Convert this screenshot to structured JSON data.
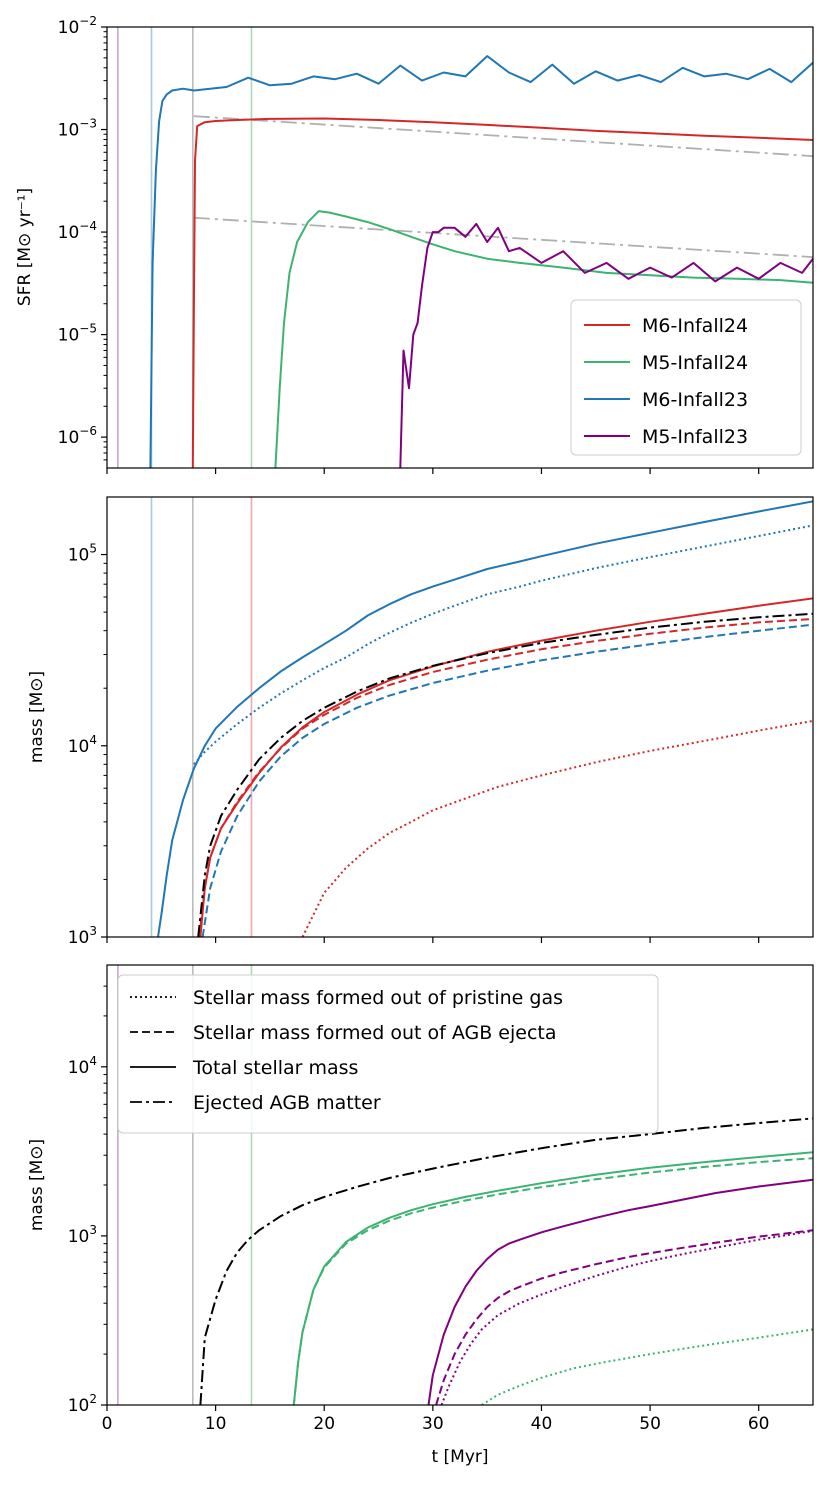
{
  "chart_data": [
    {
      "type": "line",
      "panel": "top",
      "ylabel": "SFR [M⊙ yr⁻¹]",
      "yscale": "log",
      "ylim": [
        5e-07,
        0.01
      ],
      "xlim": [
        0,
        65
      ],
      "yticks": [
        {
          "value": 1e-06,
          "base": "10",
          "exp": "−6"
        },
        {
          "value": 1e-05,
          "base": "10",
          "exp": "−5"
        },
        {
          "value": 0.0001,
          "base": "10",
          "exp": "−4"
        },
        {
          "value": 0.001,
          "base": "10",
          "exp": "−3"
        },
        {
          "value": 0.01,
          "base": "10",
          "exp": "−2"
        }
      ],
      "vlines": [
        {
          "x": 1.0,
          "color": "#c8a8d2"
        },
        {
          "x": 4.1,
          "color": "#a9c9e0"
        },
        {
          "x": 7.9,
          "color": "#bcbcbc"
        },
        {
          "x": 13.3,
          "color": "#a9dcb5"
        }
      ],
      "reference_lines": [
        {
          "name": "high-mass-fit",
          "color": "#b0b0b0",
          "x": [
            8,
            65
          ],
          "y": [
            0.00135,
            0.00055
          ]
        },
        {
          "name": "low-mass-fit",
          "color": "#b0b0b0",
          "x": [
            8,
            65
          ],
          "y": [
            0.000138,
            5.7e-05
          ]
        }
      ],
      "series": [
        {
          "name": "M6-Infall24",
          "color": "#d62728",
          "x": [
            7.9,
            8.0,
            8.1,
            8.3,
            9,
            10,
            12,
            15,
            20,
            25,
            30,
            35,
            40,
            45,
            50,
            55,
            60,
            65
          ],
          "y": [
            5e-07,
            2e-05,
            0.0005,
            0.00108,
            0.00118,
            0.00121,
            0.00124,
            0.00127,
            0.00128,
            0.00124,
            0.00118,
            0.00111,
            0.00104,
            0.00097,
            0.00092,
            0.00087,
            0.00083,
            0.00079
          ]
        },
        {
          "name": "M5-Infall24",
          "color": "#3cb371",
          "x": [
            15.5,
            15.9,
            16.3,
            16.8,
            17.5,
            18.5,
            19.5,
            20.5,
            22,
            24,
            26,
            28,
            30,
            32,
            35,
            38,
            42,
            46,
            50,
            54,
            58,
            62,
            65
          ],
          "y": [
            5e-07,
            3e-06,
            1.3e-05,
            4e-05,
            8e-05,
            0.000125,
            0.00016,
            0.000155,
            0.000142,
            0.000125,
            0.000107,
            9e-05,
            7.6e-05,
            6.5e-05,
            5.5e-05,
            5e-05,
            4.5e-05,
            4e-05,
            3.8e-05,
            3.6e-05,
            3.5e-05,
            3.4e-05,
            3.2e-05
          ]
        },
        {
          "name": "M6-Infall23",
          "color": "#1f77b4",
          "x": [
            4.0,
            4.2,
            4.5,
            4.8,
            5.1,
            5.5,
            6.0,
            7.0,
            8.0,
            9.5,
            11,
            13,
            15,
            17,
            19,
            21,
            23,
            25,
            27,
            29,
            31,
            33,
            35,
            37,
            39,
            41,
            43,
            45,
            47,
            49,
            51,
            53,
            55,
            57,
            59,
            61,
            63,
            65
          ],
          "y": [
            5e-07,
            5e-05,
            0.0004,
            0.0012,
            0.0019,
            0.0022,
            0.0024,
            0.0025,
            0.0024,
            0.0025,
            0.0026,
            0.0032,
            0.0027,
            0.0028,
            0.0033,
            0.0031,
            0.0035,
            0.0028,
            0.0042,
            0.003,
            0.0036,
            0.0033,
            0.0052,
            0.0036,
            0.0029,
            0.0043,
            0.0028,
            0.0037,
            0.003,
            0.0034,
            0.0029,
            0.004,
            0.0033,
            0.0035,
            0.0031,
            0.0039,
            0.0029,
            0.0045
          ]
        },
        {
          "name": "M5-Infall23",
          "color": "#800080",
          "x": [
            27.0,
            27.3,
            27.8,
            28.2,
            28.6,
            29.0,
            29.5,
            30.0,
            30.5,
            31,
            32,
            33,
            34,
            35,
            36,
            37,
            38,
            40,
            42,
            44,
            46,
            48,
            50,
            52,
            54,
            56,
            58,
            60,
            62,
            64,
            65
          ],
          "y": [
            5e-07,
            7e-06,
            3e-06,
            1e-05,
            1.3e-05,
            3e-05,
            7e-05,
            0.0001,
            0.0001,
            0.00011,
            0.00011,
            9e-05,
            0.00012,
            8e-05,
            0.00011,
            6.5e-05,
            7e-05,
            5e-05,
            6.5e-05,
            4e-05,
            5e-05,
            3.5e-05,
            4.5e-05,
            3.6e-05,
            5e-05,
            3.3e-05,
            4.5e-05,
            3.5e-05,
            5e-05,
            4e-05,
            5.5e-05
          ]
        }
      ],
      "legend": {
        "placement": "lower-right",
        "entries": [
          "M6-Infall24",
          "M5-Infall24",
          "M6-Infall23",
          "M5-Infall23"
        ]
      }
    },
    {
      "type": "line",
      "panel": "middle",
      "ylabel": "mass [M⊙]",
      "yscale": "log",
      "ylim": [
        1000,
        200000
      ],
      "xlim": [
        0,
        65
      ],
      "yticks": [
        {
          "value": 1000,
          "base": "10",
          "exp": "3"
        },
        {
          "value": 10000,
          "base": "10",
          "exp": "4"
        },
        {
          "value": 100000,
          "base": "10",
          "exp": "5"
        }
      ],
      "vlines": [
        {
          "x": 4.1,
          "color": "#a9c9e0"
        },
        {
          "x": 7.9,
          "color": "#bcbcbc"
        },
        {
          "x": 13.3,
          "color": "#f0a8a8"
        }
      ],
      "series": [
        {
          "name": "M6-Infall23 total",
          "color": "#1f77b4",
          "dash": "solid",
          "x": [
            4.7,
            5,
            5.5,
            6,
            7,
            8,
            9,
            10,
            12,
            14,
            16,
            18,
            20,
            22,
            24,
            26,
            28,
            30,
            32,
            35,
            38,
            40,
            45,
            50,
            55,
            60,
            65
          ],
          "y": [
            1000,
            1300,
            2100,
            3200,
            5200,
            7600,
            10000,
            12300,
            16000,
            20000,
            24500,
            29000,
            34000,
            40000,
            48000,
            55000,
            62000,
            68000,
            74000,
            84000,
            92000,
            98000,
            114000,
            130000,
            148000,
            168000,
            190000
          ]
        },
        {
          "name": "M6-Infall23 pristine",
          "color": "#1f77b4",
          "dash": "dotted",
          "x": [
            8,
            9,
            10,
            12,
            14,
            16,
            18,
            20,
            22,
            24,
            26,
            28,
            30,
            32,
            35,
            38,
            40,
            45,
            50,
            55,
            60,
            65
          ],
          "y": [
            8000,
            9300,
            10500,
            13000,
            15800,
            18800,
            22000,
            25500,
            29000,
            34000,
            39000,
            44000,
            49000,
            54000,
            62000,
            68000,
            73000,
            85000,
            97000,
            110000,
            125000,
            142000
          ]
        },
        {
          "name": "M6-Infall23 AGB",
          "color": "#1f77b4",
          "dash": "dashed",
          "x": [
            8.8,
            9.5,
            10.5,
            12,
            14,
            16,
            18,
            20,
            23,
            26,
            30,
            35,
            40,
            45,
            50,
            55,
            60,
            65
          ],
          "y": [
            1000,
            1800,
            2800,
            4300,
            6500,
            8800,
            11000,
            13000,
            15800,
            18300,
            21300,
            24700,
            28000,
            31000,
            34000,
            37000,
            40000,
            43000
          ]
        },
        {
          "name": "M6-Infall24 total",
          "color": "#d62728",
          "dash": "solid",
          "x": [
            8.6,
            9,
            9.5,
            10.5,
            12,
            14,
            16,
            18,
            20,
            23,
            26,
            30,
            35,
            40,
            45,
            50,
            55,
            60,
            65
          ],
          "y": [
            1000,
            1800,
            2600,
            3700,
            5000,
            7200,
            9800,
            12500,
            15000,
            18500,
            22000,
            26000,
            31000,
            35500,
            40000,
            44500,
            49000,
            54000,
            59000
          ]
        },
        {
          "name": "M6-Infall24 AGB",
          "color": "#d62728",
          "dash": "dashed",
          "x": [
            8.5,
            9,
            9.5,
            10.5,
            12,
            14,
            16,
            18,
            20,
            23,
            26,
            30,
            35,
            40,
            45,
            50,
            55,
            60,
            65
          ],
          "y": [
            1000,
            1800,
            2600,
            3700,
            5100,
            7300,
            9700,
            12300,
            14500,
            17800,
            20800,
            24300,
            28200,
            32000,
            35300,
            38500,
            41500,
            44200,
            46000
          ]
        },
        {
          "name": "M6-Infall24 pristine",
          "color": "#d62728",
          "dash": "dotted",
          "x": [
            18,
            20,
            22,
            24,
            26,
            28,
            30,
            33,
            36,
            40,
            45,
            50,
            55,
            60,
            65
          ],
          "y": [
            1000,
            1700,
            2300,
            2900,
            3500,
            4000,
            4600,
            5300,
            6100,
            7000,
            8200,
            9400,
            10600,
            12000,
            13500
          ]
        },
        {
          "name": "M6-Infall24 AGB ejected",
          "color": "#000000",
          "dash": "dashdot",
          "x": [
            8.4,
            9,
            9.5,
            10.5,
            12,
            14,
            16,
            18,
            20,
            23,
            26,
            30,
            35,
            40,
            45,
            50,
            55,
            60,
            65
          ],
          "y": [
            1000,
            2100,
            3000,
            4300,
            5900,
            8500,
            11000,
            13500,
            15800,
            19200,
            22500,
            26200,
            30500,
            34500,
            38000,
            41500,
            44500,
            47000,
            49000
          ]
        }
      ]
    },
    {
      "type": "line",
      "panel": "bottom",
      "ylabel": "mass [M⊙]",
      "xlabel": "t [Myr]",
      "yscale": "log",
      "ylim": [
        100,
        40000
      ],
      "xlim": [
        0,
        65
      ],
      "xticks": [
        0,
        10,
        20,
        30,
        40,
        50,
        60
      ],
      "yticks": [
        {
          "value": 100,
          "base": "10",
          "exp": "2"
        },
        {
          "value": 1000,
          "base": "10",
          "exp": "3"
        },
        {
          "value": 10000,
          "base": "10",
          "exp": "4"
        }
      ],
      "vlines": [
        {
          "x": 1.0,
          "color": "#c8a8d2"
        },
        {
          "x": 7.9,
          "color": "#bcbcbc"
        },
        {
          "x": 13.3,
          "color": "#a9dcb5"
        }
      ],
      "series": [
        {
          "name": "Ejected AGB matter",
          "color": "#000000",
          "dash": "dashdot",
          "x": [
            8.6,
            9,
            10,
            11,
            12,
            13,
            14,
            16,
            18,
            20,
            23,
            26,
            30,
            35,
            40,
            45,
            50,
            55,
            60,
            65
          ],
          "y": [
            100,
            250,
            420,
            620,
            800,
            950,
            1080,
            1310,
            1520,
            1700,
            1950,
            2200,
            2500,
            2900,
            3300,
            3700,
            4000,
            4350,
            4650,
            4950
          ]
        },
        {
          "name": "M5-Infall24 total",
          "color": "#3cb371",
          "dash": "solid",
          "x": [
            17.2,
            17.6,
            18,
            19,
            20,
            22,
            24,
            26,
            28,
            30,
            33,
            36,
            40,
            45,
            50,
            55,
            60,
            65
          ],
          "y": [
            100,
            180,
            270,
            480,
            660,
            920,
            1120,
            1280,
            1420,
            1540,
            1700,
            1850,
            2050,
            2300,
            2530,
            2730,
            2930,
            3120
          ]
        },
        {
          "name": "M5-Infall24 AGB",
          "color": "#3cb371",
          "dash": "dashed",
          "x": [
            17.2,
            17.6,
            18,
            19,
            20,
            22,
            24,
            26,
            28,
            30,
            33,
            36,
            40,
            45,
            50,
            55,
            60,
            65
          ],
          "y": [
            100,
            180,
            270,
            480,
            650,
            900,
            1080,
            1230,
            1360,
            1470,
            1620,
            1760,
            1940,
            2160,
            2370,
            2560,
            2730,
            2880
          ]
        },
        {
          "name": "M5-Infall24 pristine",
          "color": "#3cb371",
          "dash": "dotted",
          "x": [
            34.5,
            36,
            38,
            40,
            43,
            46,
            50,
            53,
            56,
            60,
            65
          ],
          "y": [
            100,
            115,
            130,
            145,
            165,
            180,
            200,
            215,
            230,
            250,
            280
          ]
        },
        {
          "name": "M5-Infall23 total",
          "color": "#800080",
          "dash": "solid",
          "x": [
            29.6,
            30,
            31,
            32,
            33,
            34,
            35,
            36,
            37,
            38,
            40,
            42,
            45,
            48,
            50,
            53,
            56,
            60,
            65
          ],
          "y": [
            100,
            150,
            260,
            380,
            500,
            620,
            730,
            830,
            900,
            950,
            1050,
            1140,
            1280,
            1420,
            1500,
            1640,
            1790,
            1960,
            2150
          ]
        },
        {
          "name": "M5-Infall23 AGB",
          "color": "#800080",
          "dash": "dashed",
          "x": [
            30.3,
            31,
            32,
            33,
            34,
            35,
            36,
            37,
            38,
            40,
            42,
            45,
            48,
            50,
            53,
            56,
            60,
            65
          ],
          "y": [
            100,
            140,
            200,
            260,
            320,
            380,
            430,
            470,
            500,
            560,
            610,
            680,
            750,
            790,
            850,
            910,
            990,
            1080
          ]
        },
        {
          "name": "M5-Infall23 pristine",
          "color": "#800080",
          "dash": "dotted",
          "x": [
            30.8,
            31.5,
            32.5,
            33.5,
            34.5,
            36,
            38,
            40,
            42,
            45,
            48,
            50,
            53,
            56,
            60,
            65
          ],
          "y": [
            100,
            130,
            180,
            230,
            280,
            340,
            400,
            450,
            500,
            580,
            660,
            710,
            780,
            850,
            950,
            1070
          ]
        }
      ],
      "legend": {
        "placement": "upper-left",
        "entries": [
          {
            "label": "Stellar mass formed out of pristine gas",
            "dash": "dotted"
          },
          {
            "label": "Stellar mass formed out of AGB ejecta",
            "dash": "dashed"
          },
          {
            "label": "Total stellar mass",
            "dash": "solid"
          },
          {
            "label": "Ejected AGB matter",
            "dash": "dashdot"
          }
        ]
      }
    }
  ]
}
